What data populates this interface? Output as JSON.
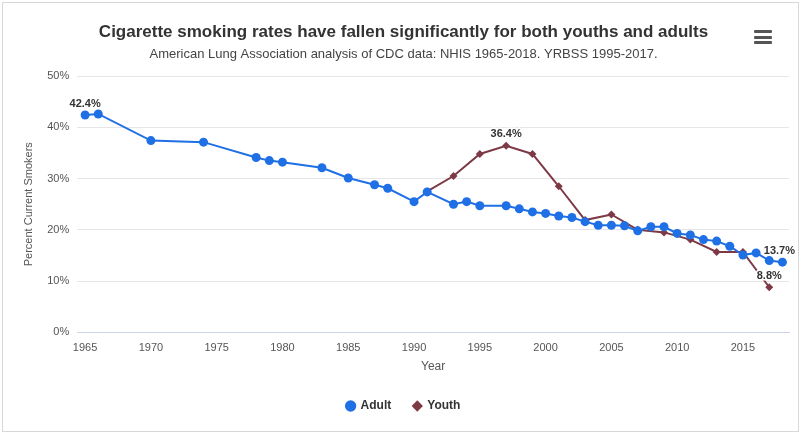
{
  "chart_data": {
    "type": "line",
    "title": "Cigarette smoking rates have fallen significantly for both youths and adults",
    "subtitle": "American Lung Association analysis of CDC data: NHIS 1965-2018. YRBSS 1995-2017.",
    "x_label": "Year",
    "y_label": "Percent Current Smokers",
    "xlim": [
      1964.4,
      2018.5
    ],
    "xticks": [
      1965,
      1970,
      1975,
      1980,
      1985,
      1990,
      1995,
      2000,
      2005,
      2010,
      2015
    ],
    "ylim": [
      0,
      50
    ],
    "yticks": [
      {
        "value": 0,
        "label": "0%"
      },
      {
        "value": 10,
        "label": "10%"
      },
      {
        "value": 20,
        "label": "20%"
      },
      {
        "value": 30,
        "label": "30%"
      },
      {
        "value": 40,
        "label": "40%"
      },
      {
        "value": 50,
        "label": "50%"
      }
    ],
    "grid": "y",
    "legend": "bottom",
    "series": [
      {
        "name": "Adult",
        "color": "#1f6fe5",
        "marker": "circle",
        "x": [
          1965,
          1966,
          1970,
          1974,
          1978,
          1979,
          1980,
          1983,
          1985,
          1987,
          1988,
          1990,
          1991,
          1993,
          1994,
          1995,
          1997,
          1998,
          1999,
          2000,
          2001,
          2002,
          2003,
          2004,
          2005,
          2006,
          2007,
          2008,
          2009,
          2010,
          2011,
          2012,
          2013,
          2014,
          2015,
          2016,
          2017,
          2018
        ],
        "values": [
          42.4,
          42.6,
          37.4,
          37.1,
          34.1,
          33.5,
          33.2,
          32.1,
          30.1,
          28.8,
          28.1,
          25.5,
          27.4,
          25.0,
          25.5,
          24.7,
          24.7,
          24.1,
          23.5,
          23.2,
          22.7,
          22.4,
          21.6,
          20.9,
          20.9,
          20.8,
          19.8,
          20.6,
          20.6,
          19.3,
          19.0,
          18.1,
          17.8,
          16.8,
          15.1,
          15.5,
          14.0,
          13.7
        ]
      },
      {
        "name": "Youth",
        "color": "#7d3a46",
        "marker": "diamond",
        "x": [
          1991,
          1993,
          1995,
          1997,
          1999,
          2001,
          2003,
          2005,
          2007,
          2009,
          2011,
          2013,
          2015,
          2017
        ],
        "values": [
          27.5,
          30.5,
          34.8,
          36.4,
          34.8,
          28.5,
          21.9,
          23.0,
          20.0,
          19.5,
          18.1,
          15.7,
          15.7,
          8.8
        ]
      }
    ],
    "annotations": [
      {
        "text": "42.4%",
        "x": 1965,
        "y": 42.4
      },
      {
        "text": "36.4%",
        "x": 1997,
        "y": 36.4
      },
      {
        "text": "13.7%",
        "x": 2018,
        "y": 13.7
      },
      {
        "text": "8.8%",
        "x": 2017,
        "y": 8.8
      }
    ]
  }
}
